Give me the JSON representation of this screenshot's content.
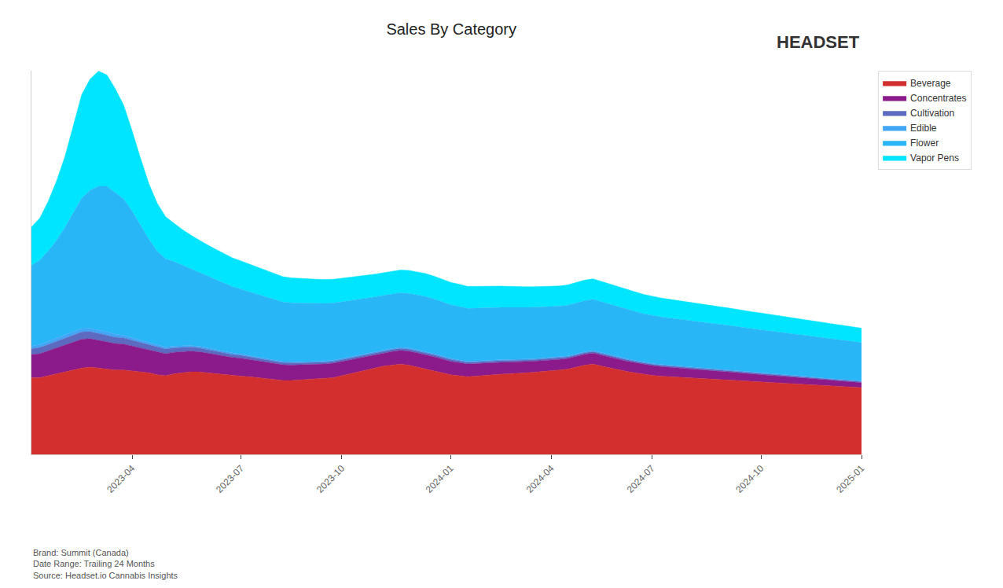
{
  "chart_data": {
    "type": "area",
    "title": "Sales By Category",
    "stacked": true,
    "legend": "right",
    "grid": false,
    "tick_labels": "x",
    "ylim": [
      0,
      2000
    ],
    "categories": [
      null,
      null,
      null,
      null,
      null,
      null,
      null,
      null,
      null,
      null,
      null,
      null,
      "2023-04",
      null,
      null,
      null,
      null,
      null,
      null,
      null,
      null,
      null,
      null,
      null,
      null,
      "2023-07",
      null,
      null,
      null,
      null,
      null,
      null,
      null,
      null,
      null,
      null,
      null,
      "2023-10",
      null,
      null,
      null,
      null,
      null,
      null,
      null,
      null,
      null,
      null,
      null,
      null,
      "2024-01",
      null,
      null,
      null,
      null,
      null,
      null,
      null,
      null,
      null,
      null,
      null,
      "2024-04",
      null,
      null,
      null,
      null,
      null,
      null,
      null,
      null,
      null,
      null,
      null,
      "2024-07",
      null,
      null,
      null,
      null,
      null,
      null,
      null,
      null,
      null,
      null,
      null,
      null,
      "2024-10",
      null,
      null,
      null,
      null,
      null,
      null,
      null,
      null,
      null,
      null,
      null,
      "2025-01"
    ],
    "annotations": [
      "Brand: Summit (Canada)",
      "Date Range: Trailing 24 Months",
      "Source: Headset.io Cannabis Insights",
      "HEADSET"
    ],
    "series": [
      {
        "name": "Beverage",
        "color": "#d32f2f",
        "values": [
          400,
          400,
          410,
          420,
          430,
          440,
          450,
          455,
          450,
          445,
          440,
          440,
          435,
          430,
          425,
          415,
          410,
          420,
          425,
          430,
          430,
          425,
          420,
          415,
          410,
          408,
          405,
          400,
          395,
          390,
          385,
          385,
          388,
          390,
          392,
          395,
          400,
          410,
          420,
          430,
          440,
          450,
          460,
          465,
          470,
          465,
          455,
          445,
          435,
          425,
          415,
          410,
          405,
          408,
          412,
          415,
          418,
          420,
          422,
          425,
          428,
          432,
          435,
          440,
          445,
          455,
          465,
          470,
          460,
          450,
          440,
          432,
          425,
          418,
          412,
          408,
          405,
          402,
          400,
          398,
          395,
          393,
          390,
          388,
          385,
          382,
          380,
          378,
          375,
          373,
          370,
          368,
          365,
          363,
          360,
          358,
          355,
          353,
          350,
          348
        ]
      },
      {
        "name": "Concentrates",
        "color": "#8b1a8b",
        "values": [
          120,
          125,
          130,
          135,
          140,
          145,
          150,
          148,
          145,
          142,
          138,
          135,
          130,
          125,
          120,
          118,
          115,
          112,
          110,
          108,
          105,
          102,
          100,
          98,
          95,
          93,
          90,
          88,
          86,
          84,
          82,
          80,
          79,
          78,
          77,
          76,
          75,
          74,
          73,
          72,
          71,
          70,
          70,
          71,
          72,
          73,
          74,
          75,
          74,
          72,
          70,
          68,
          66,
          65,
          64,
          63,
          62,
          61,
          60,
          59,
          58,
          57,
          56,
          55,
          55,
          56,
          57,
          58,
          57,
          56,
          55,
          54,
          53,
          52,
          51,
          50,
          49,
          48,
          47,
          46,
          45,
          44,
          43,
          42,
          41,
          40,
          39,
          38,
          37,
          36,
          35,
          34,
          33,
          32,
          31,
          30,
          29,
          28,
          27,
          26
        ]
      },
      {
        "name": "Cultivation",
        "color": "#5c6bc0",
        "values": [
          30,
          32,
          33,
          35,
          36,
          37,
          38,
          37,
          36,
          35,
          33,
          32,
          30,
          28,
          26,
          25,
          24,
          23,
          22,
          21,
          20,
          19,
          18,
          17,
          16,
          15,
          14,
          13,
          12,
          12,
          11,
          11,
          10,
          10,
          10,
          10,
          10,
          10,
          10,
          10,
          10,
          10,
          10,
          10,
          10,
          10,
          10,
          10,
          10,
          10,
          10,
          10,
          9,
          9,
          9,
          9,
          9,
          9,
          8,
          8,
          8,
          8,
          8,
          8,
          8,
          8,
          8,
          8,
          8,
          8,
          8,
          8,
          7,
          7,
          7,
          7,
          7,
          7,
          7,
          7,
          7,
          7,
          7,
          7,
          6,
          6,
          6,
          6,
          6,
          6,
          6,
          6,
          6,
          6,
          5,
          5,
          5,
          5,
          5,
          5
        ]
      },
      {
        "name": "Edible",
        "color": "#42a5f5",
        "values": [
          15,
          15,
          16,
          16,
          17,
          17,
          18,
          17,
          17,
          16,
          15,
          14,
          13,
          12,
          11,
          11,
          10,
          10,
          10,
          9,
          9,
          9,
          8,
          8,
          8,
          7,
          7,
          7,
          7,
          6,
          6,
          6,
          6,
          6,
          6,
          6,
          6,
          6,
          6,
          6,
          6,
          6,
          6,
          6,
          6,
          6,
          6,
          6,
          6,
          6,
          5,
          5,
          5,
          5,
          5,
          5,
          5,
          5,
          5,
          5,
          5,
          5,
          5,
          5,
          5,
          5,
          5,
          5,
          5,
          5,
          5,
          5,
          5,
          4,
          4,
          4,
          4,
          4,
          4,
          4,
          4,
          4,
          4,
          4,
          4,
          4,
          4,
          4,
          4,
          4,
          4,
          4,
          4,
          4,
          4,
          4,
          4,
          4,
          4,
          4
        ]
      },
      {
        "name": "Flower",
        "color": "#29b6f6",
        "values": [
          420,
          440,
          470,
          510,
          560,
          620,
          680,
          720,
          750,
          760,
          740,
          710,
          660,
          600,
          540,
          490,
          460,
          440,
          420,
          400,
          385,
          375,
          365,
          355,
          345,
          338,
          332,
          326,
          320,
          315,
          310,
          308,
          306,
          304,
          302,
          300,
          298,
          295,
          292,
          290,
          288,
          285,
          283,
          283,
          284,
          285,
          286,
          287,
          285,
          283,
          280,
          278,
          276,
          275,
          274,
          273,
          272,
          271,
          270,
          269,
          268,
          267,
          266,
          265,
          265,
          265,
          266,
          267,
          265,
          263,
          260,
          258,
          255,
          252,
          250,
          248,
          246,
          244,
          242,
          240,
          238,
          236,
          234,
          232,
          230,
          228,
          226,
          224,
          222,
          220,
          218,
          216,
          214,
          212,
          210,
          208,
          206,
          204,
          202,
          200
        ]
      },
      {
        "name": "Vapor Pens",
        "color": "#00e5ff",
        "values": [
          200,
          220,
          260,
          310,
          370,
          450,
          540,
          580,
          600,
          580,
          540,
          490,
          420,
          350,
          290,
          250,
          220,
          200,
          185,
          175,
          168,
          162,
          158,
          154,
          150,
          147,
          144,
          141,
          138,
          135,
          132,
          130,
          128,
          127,
          126,
          125,
          124,
          123,
          122,
          121,
          120,
          119,
          118,
          118,
          119,
          120,
          121,
          120,
          119,
          118,
          117,
          116,
          115,
          114,
          113,
          112,
          111,
          110,
          109,
          108,
          107,
          106,
          105,
          105,
          106,
          107,
          108,
          107,
          106,
          105,
          104,
          103,
          102,
          101,
          100,
          99,
          98,
          97,
          96,
          95,
          94,
          93,
          92,
          91,
          90,
          89,
          88,
          87,
          86,
          85,
          84,
          83,
          82,
          81,
          80,
          79,
          78,
          77,
          76,
          75
        ]
      }
    ]
  }
}
